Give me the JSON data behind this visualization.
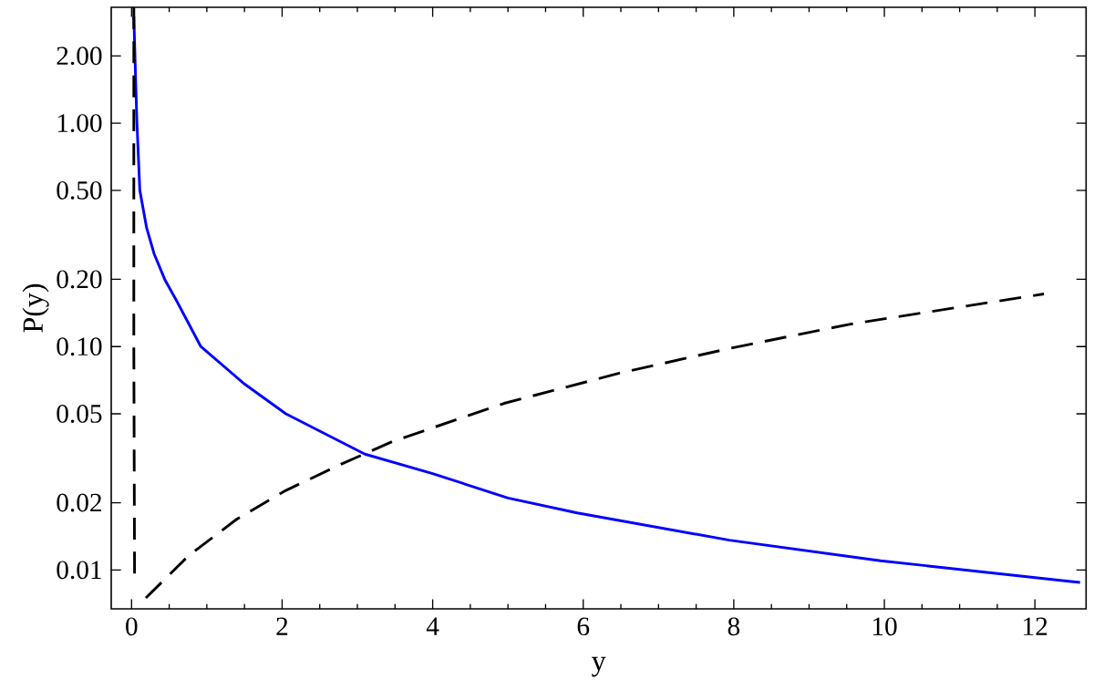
{
  "chart_data": {
    "type": "line",
    "xlabel": "y",
    "ylabel": "P(y)",
    "log": "y",
    "xlim": [
      -0.27,
      12.68
    ],
    "ylim": [
      0.0067,
      3.3
    ],
    "xticks": [
      0,
      2,
      4,
      6,
      8,
      10,
      12
    ],
    "yticks": [
      {
        "value": 0.01,
        "label": "0.01"
      },
      {
        "value": 0.02,
        "label": "0.02"
      },
      {
        "value": 0.05,
        "label": "0.05"
      },
      {
        "value": 0.1,
        "label": "0.10"
      },
      {
        "value": 0.2,
        "label": "0.20"
      },
      {
        "value": 0.5,
        "label": "0.50"
      },
      {
        "value": 1,
        "label": "1.00"
      },
      {
        "value": 2,
        "label": "2.00"
      }
    ],
    "series": [
      {
        "color": "#0000ff",
        "line_style": "solid",
        "x": [
          0.03,
          0.07,
          0.11,
          0.2,
          0.3,
          0.44,
          0.6,
          0.92,
          1.5,
          2.05,
          3.1,
          4,
          5,
          5.92,
          7.94,
          9.95,
          12.45,
          12.6
        ],
        "values": [
          3.0,
          1.03,
          0.5,
          0.34,
          0.26,
          0.2,
          0.16,
          0.1,
          0.068,
          0.05,
          0.033,
          0.027,
          0.021,
          0.018,
          0.0136,
          0.011,
          0.0089,
          0.0088
        ]
      },
      {
        "color": "#000000",
        "line_style": "dashed",
        "x": [
          0.03,
          0.03,
          0.04,
          null,
          0.19,
          0.76,
          1.4,
          2.05,
          2.78,
          3.46,
          4.95,
          6.48,
          7.94,
          9.55,
          12.12
        ],
        "values": [
          3.3,
          0.1,
          0.0096,
          null,
          0.0075,
          0.0116,
          0.0169,
          0.0227,
          0.0297,
          0.0375,
          0.0557,
          0.076,
          0.098,
          0.126,
          0.172
        ]
      }
    ],
    "grid": false,
    "marker": "none"
  }
}
